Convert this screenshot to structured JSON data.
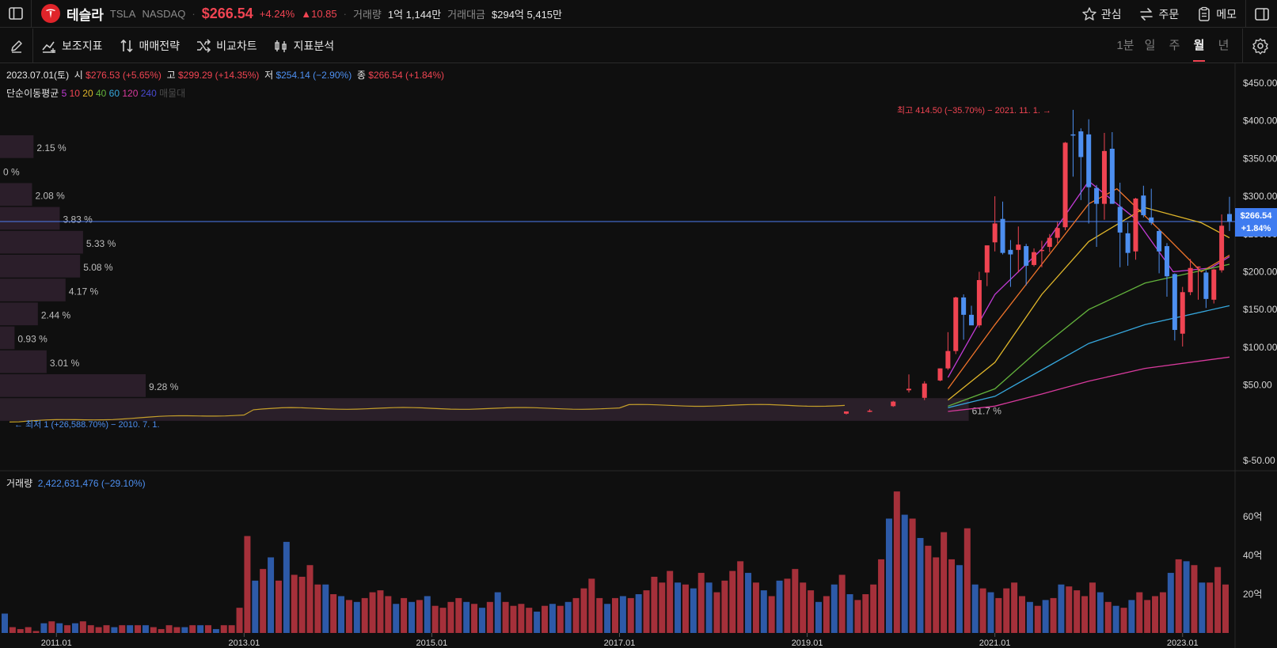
{
  "header": {
    "name": "테슬라",
    "ticker": "TSLA",
    "exchange": "NASDAQ",
    "price": "$266.54",
    "change_pct": "+4.24%",
    "change_abs": "▲10.85",
    "volume_label": "거래량",
    "volume_value": "1억 1,144만",
    "amount_label": "거래대금",
    "amount_value": "$294억 5,415만",
    "actions": [
      "관심",
      "주문",
      "메모"
    ]
  },
  "toolbar": {
    "items": [
      "보조지표",
      "매매전략",
      "비교차트",
      "지표분석"
    ],
    "periods": [
      "1분",
      "일",
      "주",
      "월",
      "년"
    ],
    "active_period": "월"
  },
  "ohlc": {
    "date": "2023.07.01(토)",
    "open_label": "시",
    "open": "$276.53 (+5.65%)",
    "high_label": "고",
    "high": "$299.29 (+14.35%)",
    "low_label": "저",
    "low": "$254.14 (−2.90%)",
    "close_label": "종",
    "close": "$266.54 (+1.84%)"
  },
  "ma_legend": {
    "label": "단순이동평균",
    "periods": [
      "5",
      "10",
      "20",
      "40",
      "60",
      "120",
      "240"
    ],
    "colors": [
      "#c23bd6",
      "#f04452",
      "#e0b62a",
      "#63b33c",
      "#36a7dd",
      "#d83a9d",
      "#4a4ad0"
    ],
    "extra": "매물대"
  },
  "annotations": {
    "high": "최고 414.50 (−35.70%) − 2021. 11. 1. →",
    "low": "← 최저 1 (+26,588.70%) − 2010. 7. 1."
  },
  "price_tag": {
    "price": "$266.54",
    "change": "+1.84%"
  },
  "volume_legend": {
    "label": "거래량",
    "value": "2,422,631,476 (−29.10%)"
  },
  "chart_data": {
    "type": "candlestick",
    "price_axis": [
      "$450.00",
      "$400.00",
      "$350.00",
      "$300.00",
      "$250.00",
      "$200.00",
      "$150.00",
      "$100.00",
      "$50.00",
      "$-50.00"
    ],
    "volume_axis": [
      "60억",
      "40억",
      "20억"
    ],
    "x_labels": [
      "2011.01",
      "2013.01",
      "2015.01",
      "2017.01",
      "2019.01",
      "2021.01",
      "2023.01"
    ],
    "volume_profile": [
      {
        "pct": "2.15 %",
        "value": 0.23
      },
      {
        "pct": "0 %",
        "value": 0
      },
      {
        "pct": "2.08 %",
        "value": 0.22
      },
      {
        "pct": "3.83 %",
        "value": 0.41
      },
      {
        "pct": "5.33 %",
        "value": 0.57
      },
      {
        "pct": "5.08 %",
        "value": 0.55
      },
      {
        "pct": "4.17 %",
        "value": 0.45
      },
      {
        "pct": "2.44 %",
        "value": 0.26
      },
      {
        "pct": "0.93 %",
        "value": 0.1
      },
      {
        "pct": "3.01 %",
        "value": 0.32
      },
      {
        "pct": "9.28 %",
        "value": 1.0
      },
      {
        "pct": "61.7 %",
        "value": 6.65
      }
    ],
    "ohlc_monthly_recent": [
      [
        "2019.06",
        12,
        15,
        11,
        15
      ],
      [
        "2019.09",
        15,
        18,
        14,
        16
      ],
      [
        "2019.12",
        22,
        29,
        21,
        28
      ],
      [
        "2020.02",
        43,
        64,
        40,
        45
      ],
      [
        "2020.04",
        33,
        55,
        30,
        52
      ],
      [
        "2020.06",
        56,
        72,
        55,
        72
      ],
      [
        "2020.07",
        72,
        120,
        70,
        95
      ],
      [
        "2020.08",
        95,
        167,
        91,
        166
      ],
      [
        "2020.09",
        166,
        170,
        110,
        143
      ],
      [
        "2020.10",
        143,
        155,
        133,
        129
      ],
      [
        "2020.11",
        129,
        200,
        126,
        189
      ],
      [
        "2020.12",
        199,
        231,
        181,
        235
      ],
      [
        "2021.01",
        239,
        300,
        227,
        264
      ],
      [
        "2021.02",
        270,
        293,
        223,
        225
      ],
      [
        "2021.03",
        229,
        242,
        180,
        223
      ],
      [
        "2021.04",
        229,
        260,
        199,
        236
      ],
      [
        "2021.05",
        234,
        237,
        182,
        208
      ],
      [
        "2021.06",
        209,
        231,
        207,
        226
      ],
      [
        "2021.07",
        229,
        241,
        206,
        229
      ],
      [
        "2021.08",
        233,
        250,
        226,
        245
      ],
      [
        "2021.09",
        245,
        266,
        238,
        258
      ],
      [
        "2021.10",
        259,
        372,
        255,
        371
      ],
      [
        "2021.11",
        382,
        414.5,
        326,
        381
      ],
      [
        "2021.12",
        386,
        390,
        295,
        352
      ],
      [
        "2022.01",
        382,
        402,
        264,
        312
      ],
      [
        "2022.02",
        311,
        315,
        233,
        290
      ],
      [
        "2022.03",
        290,
        384,
        269,
        360
      ],
      [
        "2022.04",
        363,
        385,
        290,
        290
      ],
      [
        "2022.05",
        286,
        318,
        206,
        252
      ],
      [
        "2022.06",
        251,
        265,
        208,
        225
      ],
      [
        "2022.07",
        227,
        298,
        216,
        297
      ],
      [
        "2022.08",
        301,
        314,
        272,
        275
      ],
      [
        "2022.09",
        272,
        310,
        262,
        265
      ],
      [
        "2022.10",
        254,
        257,
        198,
        227
      ],
      [
        "2022.11",
        234,
        238,
        167,
        194
      ],
      [
        "2022.12",
        197,
        198,
        109,
        123
      ],
      [
        "2023.01",
        118,
        180,
        101,
        173
      ],
      [
        "2023.02",
        173,
        217,
        169,
        205
      ],
      [
        "2023.03",
        206,
        207,
        163,
        207
      ],
      [
        "2023.04",
        199,
        202,
        152,
        164
      ],
      [
        "2023.05",
        163,
        204,
        158,
        203
      ],
      [
        "2023.06",
        202,
        276,
        199,
        261
      ],
      [
        "2023.07",
        276.53,
        299.29,
        254.14,
        266.54
      ]
    ],
    "ma_series": {
      "ma5": [
        [
          2020.5,
          60
        ],
        [
          2021.0,
          170
        ],
        [
          2021.5,
          230
        ],
        [
          2022.0,
          320
        ],
        [
          2022.5,
          270
        ],
        [
          2022.9,
          200
        ],
        [
          2023.3,
          205
        ],
        [
          2023.5,
          220
        ]
      ],
      "ma10": [
        [
          2020.5,
          45
        ],
        [
          2021.0,
          130
        ],
        [
          2021.5,
          210
        ],
        [
          2022.0,
          290
        ],
        [
          2022.3,
          310
        ],
        [
          2022.8,
          250
        ],
        [
          2023.2,
          200
        ],
        [
          2023.5,
          222
        ]
      ],
      "ma20": [
        [
          2020.5,
          30
        ],
        [
          2021.0,
          80
        ],
        [
          2021.5,
          170
        ],
        [
          2022.0,
          240
        ],
        [
          2022.6,
          285
        ],
        [
          2023.2,
          265
        ],
        [
          2023.5,
          245
        ]
      ],
      "ma40": [
        [
          2020.5,
          22
        ],
        [
          2021.0,
          45
        ],
        [
          2021.5,
          100
        ],
        [
          2022.0,
          150
        ],
        [
          2022.6,
          185
        ],
        [
          2023.5,
          210
        ]
      ],
      "ma60": [
        [
          2020.5,
          20
        ],
        [
          2021.0,
          35
        ],
        [
          2021.5,
          70
        ],
        [
          2022.0,
          105
        ],
        [
          2022.6,
          130
        ],
        [
          2023.5,
          155
        ]
      ],
      "ma120": [
        [
          2020.5,
          15
        ],
        [
          2021.0,
          22
        ],
        [
          2021.5,
          38
        ],
        [
          2022.0,
          55
        ],
        [
          2022.6,
          72
        ],
        [
          2023.5,
          87
        ]
      ]
    },
    "volume_bars_billion": [
      1.0,
      0.3,
      0.2,
      0.3,
      0.1,
      0.5,
      0.6,
      0.5,
      0.4,
      0.5,
      0.6,
      0.4,
      0.3,
      0.4,
      0.3,
      0.4,
      0.4,
      0.4,
      0.4,
      0.3,
      0.2,
      0.4,
      0.3,
      0.3,
      0.4,
      0.4,
      0.4,
      0.2,
      0.4,
      0.4,
      1.3,
      5.0,
      2.7,
      3.3,
      3.9,
      2.7,
      4.7,
      3.0,
      2.9,
      3.5,
      2.5,
      2.5,
      2.0,
      1.9,
      1.7,
      1.6,
      1.8,
      2.1,
      2.2,
      1.9,
      1.5,
      1.8,
      1.6,
      1.7,
      1.9,
      1.4,
      1.3,
      1.6,
      1.8,
      1.6,
      1.5,
      1.3,
      1.6,
      2.1,
      1.6,
      1.4,
      1.5,
      1.3,
      1.1,
      1.4,
      1.5,
      1.4,
      1.6,
      1.8,
      2.3,
      2.8,
      1.8,
      1.5,
      1.8,
      1.9,
      1.8,
      2.0,
      2.2,
      2.9,
      2.6,
      3.2,
      2.6,
      2.5,
      2.3,
      3.1,
      2.6,
      2.1,
      2.7,
      3.2,
      3.7,
      3.1,
      2.6,
      2.2,
      1.9,
      2.7,
      2.8,
      3.3,
      2.6,
      2.2,
      1.6,
      1.9,
      2.5,
      3.0,
      2.0,
      1.7,
      2.0,
      2.5,
      3.8,
      5.9,
      7.3,
      6.1,
      5.9,
      4.9,
      4.5,
      3.9,
      5.2,
      3.8,
      3.5,
      5.4,
      2.5,
      2.3,
      2.1,
      1.8,
      2.3,
      2.6,
      1.9,
      1.6,
      1.4,
      1.7,
      1.8,
      2.5,
      2.4,
      2.2,
      1.9,
      2.6,
      2.1,
      1.6,
      1.4,
      1.3,
      1.7,
      2.1,
      1.7,
      1.9,
      2.1,
      3.1,
      3.8,
      3.7,
      3.5,
      2.6,
      2.6,
      3.4,
      2.5
    ]
  }
}
